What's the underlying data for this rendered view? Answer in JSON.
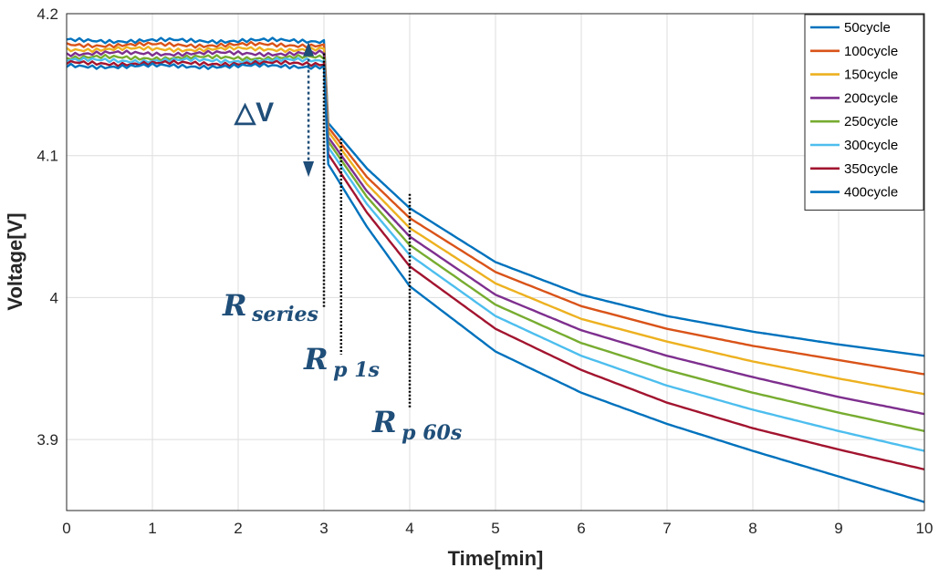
{
  "chart_data": {
    "type": "line",
    "title": "",
    "xlabel": "Time[min]",
    "ylabel": "Voltage[V]",
    "xlim": [
      0,
      10
    ],
    "ylim": [
      3.85,
      4.2
    ],
    "xticks": [
      "0",
      "1",
      "2",
      "3",
      "4",
      "5",
      "6",
      "7",
      "8",
      "9",
      "10"
    ],
    "yticks": [
      "3.9",
      "4",
      "4.1",
      "4.2"
    ],
    "grid": true,
    "legend_position": "top-right",
    "x": [
      0,
      3,
      3.05,
      3.5,
      4,
      5,
      6,
      7,
      8,
      9,
      10
    ],
    "series": [
      {
        "name": "50cycle",
        "color": "#0072BD",
        "values": [
          4.181,
          4.181,
          4.123,
          4.091,
          4.063,
          4.025,
          4.002,
          3.987,
          3.976,
          3.967,
          3.959
        ]
      },
      {
        "name": "100cycle",
        "color": "#D95319",
        "values": [
          4.178,
          4.178,
          4.12,
          4.085,
          4.056,
          4.018,
          3.994,
          3.978,
          3.966,
          3.956,
          3.946
        ]
      },
      {
        "name": "150cycle",
        "color": "#EDB120",
        "values": [
          4.175,
          4.175,
          4.117,
          4.08,
          4.049,
          4.01,
          3.985,
          3.969,
          3.955,
          3.943,
          3.932
        ]
      },
      {
        "name": "200cycle",
        "color": "#7E2F8E",
        "values": [
          4.172,
          4.172,
          4.113,
          4.075,
          4.043,
          4.002,
          3.977,
          3.959,
          3.944,
          3.93,
          3.918
        ]
      },
      {
        "name": "250cycle",
        "color": "#77AC30",
        "values": [
          4.169,
          4.169,
          4.11,
          4.071,
          4.037,
          3.995,
          3.968,
          3.949,
          3.933,
          3.919,
          3.906
        ]
      },
      {
        "name": "300cycle",
        "color": "#4DBEEE",
        "values": [
          4.167,
          4.167,
          4.106,
          4.066,
          4.03,
          3.987,
          3.959,
          3.938,
          3.921,
          3.906,
          3.892
        ]
      },
      {
        "name": "350cycle",
        "color": "#A2142F",
        "values": [
          4.165,
          4.165,
          4.101,
          4.06,
          4.022,
          3.978,
          3.949,
          3.926,
          3.908,
          3.893,
          3.879
        ]
      },
      {
        "name": "400cycle",
        "color": "#0072BD",
        "values": [
          4.163,
          4.163,
          4.094,
          4.05,
          4.008,
          3.962,
          3.933,
          3.911,
          3.892,
          3.874,
          3.856
        ]
      }
    ],
    "annotations": {
      "delta_v": "△V",
      "r_series_main": "R",
      "r_series_sub": "series",
      "rp1_main": "R",
      "rp1_sub": "p 1s",
      "rp60_main": "R",
      "rp60_sub": "p 60s",
      "annotation_color": "#1f4e79"
    }
  }
}
